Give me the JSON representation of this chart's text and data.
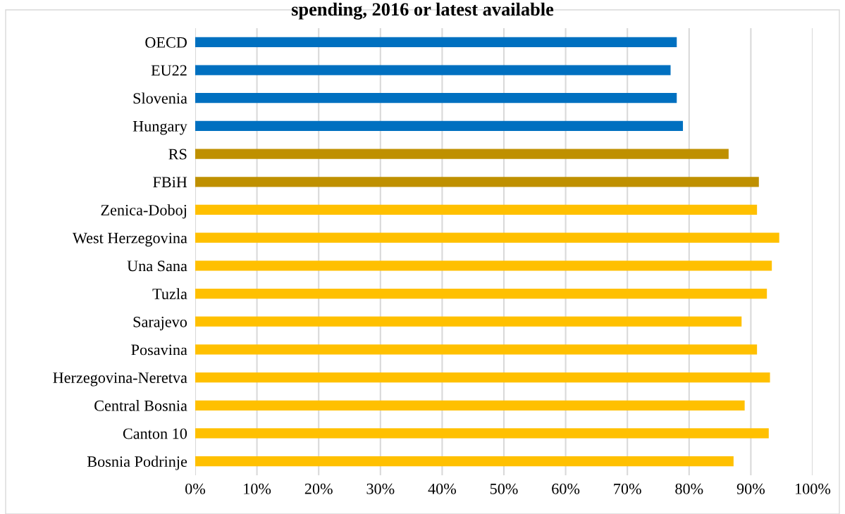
{
  "chart_data": {
    "type": "bar",
    "orientation": "horizontal",
    "title": "spending, 2016 or latest available",
    "categories": [
      "OECD",
      "EU22",
      "Slovenia",
      "Hungary",
      "RS",
      "FBiH",
      "Zenica-Doboj",
      "West Herzegovina",
      "Una Sana",
      "Tuzla",
      "Sarajevo",
      "Posavina",
      "Herzegovina-Neretva",
      "Central Bosnia",
      "Canton 10",
      "Bosnia Podrinje"
    ],
    "values": [
      78.0,
      77.0,
      78.0,
      79.0,
      86.4,
      91.3,
      91.0,
      94.6,
      93.4,
      92.6,
      88.5,
      91.0,
      93.1,
      89.0,
      92.9,
      87.2
    ],
    "colors": [
      "#0070c0",
      "#0070c0",
      "#0070c0",
      "#0070c0",
      "#bf9000",
      "#bf9000",
      "#ffc000",
      "#ffc000",
      "#ffc000",
      "#ffc000",
      "#ffc000",
      "#ffc000",
      "#ffc000",
      "#ffc000",
      "#ffc000",
      "#ffc000"
    ],
    "xlim": [
      0,
      100
    ],
    "xticks": [
      {
        "value": 0,
        "label": "0%"
      },
      {
        "value": 10,
        "label": "10%"
      },
      {
        "value": 20,
        "label": "20%"
      },
      {
        "value": 30,
        "label": "30%"
      },
      {
        "value": 40,
        "label": "40%"
      },
      {
        "value": 50,
        "label": "50%"
      },
      {
        "value": 60,
        "label": "60%"
      },
      {
        "value": 70,
        "label": "70%"
      },
      {
        "value": 80,
        "label": "80%"
      },
      {
        "value": 90,
        "label": "90%"
      },
      {
        "value": 100,
        "label": "100%"
      }
    ],
    "grid": "x",
    "legend": false
  }
}
